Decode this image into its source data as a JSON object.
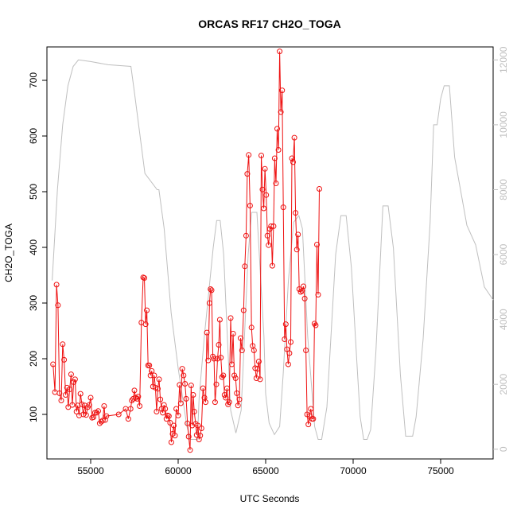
{
  "chart_data": {
    "type": "line",
    "title": "ORCAS RF17 CH2O_TOGA",
    "xlabel": "UTC Seconds",
    "ylabel": "CH2O_TOGA",
    "xlim": [
      52500,
      78000
    ],
    "ylim": [
      20,
      760
    ],
    "y2lim": [
      -300,
      12400
    ],
    "x_ticks": [
      55000,
      60000,
      65000,
      70000,
      75000
    ],
    "x_tick_labels": [
      "55000",
      "60000",
      "65000",
      "70000",
      "75000"
    ],
    "y_ticks": [
      100,
      200,
      300,
      400,
      500,
      600,
      700
    ],
    "y_tick_labels": [
      "100",
      "200",
      "300",
      "400",
      "500",
      "600",
      "700"
    ],
    "y2_ticks": [
      0,
      2000,
      4000,
      6000,
      8000,
      10000,
      12000
    ],
    "y2_tick_labels": [
      "0",
      "2000",
      "4000",
      "6000",
      "8000",
      "10000",
      "12000"
    ],
    "grid": false,
    "colors": {
      "ch2o": "#ee1111",
      "altitude": "#bfbfbf"
    },
    "series": [
      {
        "color": "#ee1111",
        "style": "line+points",
        "axis": "left",
        "points": [
          [
            52850,
            190
          ],
          [
            52960,
            140
          ],
          [
            53050,
            333
          ],
          [
            53130,
            296
          ],
          [
            53220,
            138
          ],
          [
            53320,
            125
          ],
          [
            53400,
            226
          ],
          [
            53480,
            198
          ],
          [
            53570,
            135
          ],
          [
            53650,
            148
          ],
          [
            53720,
            113
          ],
          [
            53800,
            145
          ],
          [
            53880,
            172
          ],
          [
            53950,
            117
          ],
          [
            54030,
            158
          ],
          [
            54110,
            163
          ],
          [
            54190,
            105
          ],
          [
            54260,
            116
          ],
          [
            54340,
            98
          ],
          [
            54420,
            137
          ],
          [
            54500,
            118
          ],
          [
            54580,
            100
          ],
          [
            54660,
            116
          ],
          [
            54740,
            99
          ],
          [
            54830,
            113
          ],
          [
            54920,
            117
          ],
          [
            55000,
            130
          ],
          [
            55080,
            94
          ],
          [
            55160,
            95
          ],
          [
            55250,
            103
          ],
          [
            55340,
            103
          ],
          [
            55430,
            106
          ],
          [
            55520,
            84
          ],
          [
            55610,
            87
          ],
          [
            55690,
            89
          ],
          [
            55770,
            115
          ],
          [
            55830,
            90
          ],
          [
            55900,
            97
          ],
          [
            56600,
            100
          ],
          [
            57000,
            110
          ],
          [
            57150,
            92
          ],
          [
            57280,
            110
          ],
          [
            57350,
            125
          ],
          [
            57430,
            128
          ],
          [
            57500,
            143
          ],
          [
            57570,
            130
          ],
          [
            57650,
            128
          ],
          [
            57720,
            132
          ],
          [
            57800,
            115
          ],
          [
            57900,
            265
          ],
          [
            58000,
            346
          ],
          [
            58070,
            345
          ],
          [
            58140,
            262
          ],
          [
            58210,
            287
          ],
          [
            58280,
            188
          ],
          [
            58350,
            188
          ],
          [
            58420,
            170
          ],
          [
            58490,
            178
          ],
          [
            58560,
            150
          ],
          [
            58630,
            170
          ],
          [
            58700,
            148
          ],
          [
            58770,
            105
          ],
          [
            58840,
            146
          ],
          [
            58910,
            163
          ],
          [
            58980,
            127
          ],
          [
            59050,
            110
          ],
          [
            59120,
            103
          ],
          [
            59190,
            117
          ],
          [
            59260,
            110
          ],
          [
            59330,
            92
          ],
          [
            59400,
            98
          ],
          [
            59470,
            97
          ],
          [
            59540,
            85
          ],
          [
            59610,
            50
          ],
          [
            59680,
            65
          ],
          [
            59750,
            80
          ],
          [
            59820,
            62
          ],
          [
            59890,
            110
          ],
          [
            60000,
            98
          ],
          [
            60080,
            153
          ],
          [
            60150,
            120
          ],
          [
            60230,
            182
          ],
          [
            60310,
            170
          ],
          [
            60390,
            155
          ],
          [
            60460,
            128
          ],
          [
            60530,
            84
          ],
          [
            60600,
            60
          ],
          [
            60680,
            36
          ],
          [
            60740,
            152
          ],
          [
            60800,
            80
          ],
          [
            60860,
            135
          ],
          [
            60920,
            105
          ],
          [
            61000,
            83
          ],
          [
            61060,
            63
          ],
          [
            61130,
            80
          ],
          [
            61190,
            55
          ],
          [
            61260,
            62
          ],
          [
            61330,
            75
          ],
          [
            61420,
            147
          ],
          [
            61500,
            130
          ],
          [
            61570,
            122
          ],
          [
            61640,
            247
          ],
          [
            61720,
            197
          ],
          [
            61790,
            300
          ],
          [
            61850,
            325
          ],
          [
            61910,
            323
          ],
          [
            61980,
            204
          ],
          [
            62050,
            200
          ],
          [
            62110,
            122
          ],
          [
            62180,
            154
          ],
          [
            62250,
            200
          ],
          [
            62320,
            225
          ],
          [
            62380,
            270
          ],
          [
            62440,
            202
          ],
          [
            62510,
            167
          ],
          [
            62580,
            170
          ],
          [
            62650,
            135
          ],
          [
            62720,
            130
          ],
          [
            62790,
            147
          ],
          [
            62850,
            118
          ],
          [
            62920,
            122
          ],
          [
            63000,
            273
          ],
          [
            63070,
            190
          ],
          [
            63140,
            245
          ],
          [
            63210,
            170
          ],
          [
            63280,
            165
          ],
          [
            63350,
            138
          ],
          [
            63420,
            116
          ],
          [
            63500,
            127
          ],
          [
            63570,
            237
          ],
          [
            63650,
            215
          ],
          [
            63740,
            287
          ],
          [
            63810,
            366
          ],
          [
            63880,
            421
          ],
          [
            63950,
            532
          ],
          [
            64030,
            566
          ],
          [
            64110,
            475
          ],
          [
            64190,
            256
          ],
          [
            64260,
            223
          ],
          [
            64330,
            215
          ],
          [
            64400,
            183
          ],
          [
            64470,
            165
          ],
          [
            64540,
            182
          ],
          [
            64610,
            195
          ],
          [
            64680,
            163
          ],
          [
            64750,
            565
          ],
          [
            64820,
            504
          ],
          [
            64890,
            470
          ],
          [
            64960,
            541
          ],
          [
            65030,
            494
          ],
          [
            65100,
            421
          ],
          [
            65170,
            404
          ],
          [
            65240,
            433
          ],
          [
            65310,
            438
          ],
          [
            65380,
            367
          ],
          [
            65450,
            438
          ],
          [
            65520,
            560
          ],
          [
            65590,
            515
          ],
          [
            65660,
            613
          ],
          [
            65730,
            575
          ],
          [
            65800,
            752
          ],
          [
            65870,
            643
          ],
          [
            65940,
            682
          ],
          [
            66010,
            472
          ],
          [
            66080,
            235
          ],
          [
            66150,
            262
          ],
          [
            66220,
            217
          ],
          [
            66290,
            190
          ],
          [
            66360,
            210
          ],
          [
            66430,
            230
          ],
          [
            66500,
            560
          ],
          [
            66570,
            553
          ],
          [
            66640,
            597
          ],
          [
            66710,
            462
          ],
          [
            66780,
            396
          ],
          [
            66850,
            423
          ],
          [
            66920,
            325
          ],
          [
            67000,
            320
          ],
          [
            67080,
            322
          ],
          [
            67160,
            330
          ],
          [
            67230,
            308
          ],
          [
            67300,
            215
          ],
          [
            67370,
            100
          ],
          [
            67440,
            82
          ],
          [
            67510,
            97
          ],
          [
            67580,
            110
          ],
          [
            67650,
            92
          ],
          [
            67720,
            92
          ],
          [
            67790,
            263
          ],
          [
            67860,
            260
          ],
          [
            67930,
            405
          ],
          [
            68000,
            315
          ],
          [
            68070,
            505
          ]
        ]
      },
      {
        "color": "#bfbfbf",
        "style": "line",
        "axis": "right",
        "points": [
          [
            52800,
            5200
          ],
          [
            53100,
            8000
          ],
          [
            53400,
            10000
          ],
          [
            53700,
            11200
          ],
          [
            54000,
            11800
          ],
          [
            54300,
            12000
          ],
          [
            55000,
            11950
          ],
          [
            56000,
            11850
          ],
          [
            57300,
            11800
          ],
          [
            57500,
            11000
          ],
          [
            58100,
            8500
          ],
          [
            58800,
            8000
          ],
          [
            58900,
            8000
          ],
          [
            59200,
            6800
          ],
          [
            59600,
            4200
          ],
          [
            60000,
            2500
          ],
          [
            60500,
            700
          ],
          [
            60700,
            300
          ],
          [
            61100,
            300
          ],
          [
            61200,
            1600
          ],
          [
            61500,
            3500
          ],
          [
            62000,
            6200
          ],
          [
            62200,
            7050
          ],
          [
            62400,
            7050
          ],
          [
            62600,
            6000
          ],
          [
            63000,
            1200
          ],
          [
            63300,
            500
          ],
          [
            63600,
            1200
          ],
          [
            64000,
            6000
          ],
          [
            64200,
            7300
          ],
          [
            64500,
            7300
          ],
          [
            64900,
            3500
          ],
          [
            65000,
            1700
          ],
          [
            65200,
            800
          ],
          [
            65500,
            450
          ],
          [
            65800,
            700
          ],
          [
            66000,
            2300
          ],
          [
            66300,
            5200
          ],
          [
            66600,
            7000
          ],
          [
            66900,
            7200
          ],
          [
            67100,
            6800
          ],
          [
            67400,
            3500
          ],
          [
            67800,
            700
          ],
          [
            68000,
            300
          ],
          [
            68200,
            300
          ],
          [
            68500,
            1300
          ],
          [
            69000,
            6000
          ],
          [
            69300,
            7200
          ],
          [
            69600,
            7200
          ],
          [
            69900,
            5600
          ],
          [
            70200,
            2800
          ],
          [
            70400,
            1000
          ],
          [
            70600,
            300
          ],
          [
            70800,
            300
          ],
          [
            71000,
            600
          ],
          [
            71300,
            3000
          ],
          [
            71700,
            7500
          ],
          [
            72000,
            7500
          ],
          [
            72300,
            6200
          ],
          [
            72700,
            2300
          ],
          [
            73000,
            400
          ],
          [
            73400,
            400
          ],
          [
            73600,
            1000
          ],
          [
            74000,
            3400
          ],
          [
            74400,
            7000
          ],
          [
            74600,
            10000
          ],
          [
            74800,
            10000
          ],
          [
            75000,
            10800
          ],
          [
            75200,
            11200
          ],
          [
            75500,
            11200
          ],
          [
            75800,
            9000
          ],
          [
            76000,
            8400
          ],
          [
            76500,
            6900
          ],
          [
            77000,
            6300
          ],
          [
            77500,
            5000
          ],
          [
            78000,
            4600
          ]
        ]
      }
    ]
  }
}
